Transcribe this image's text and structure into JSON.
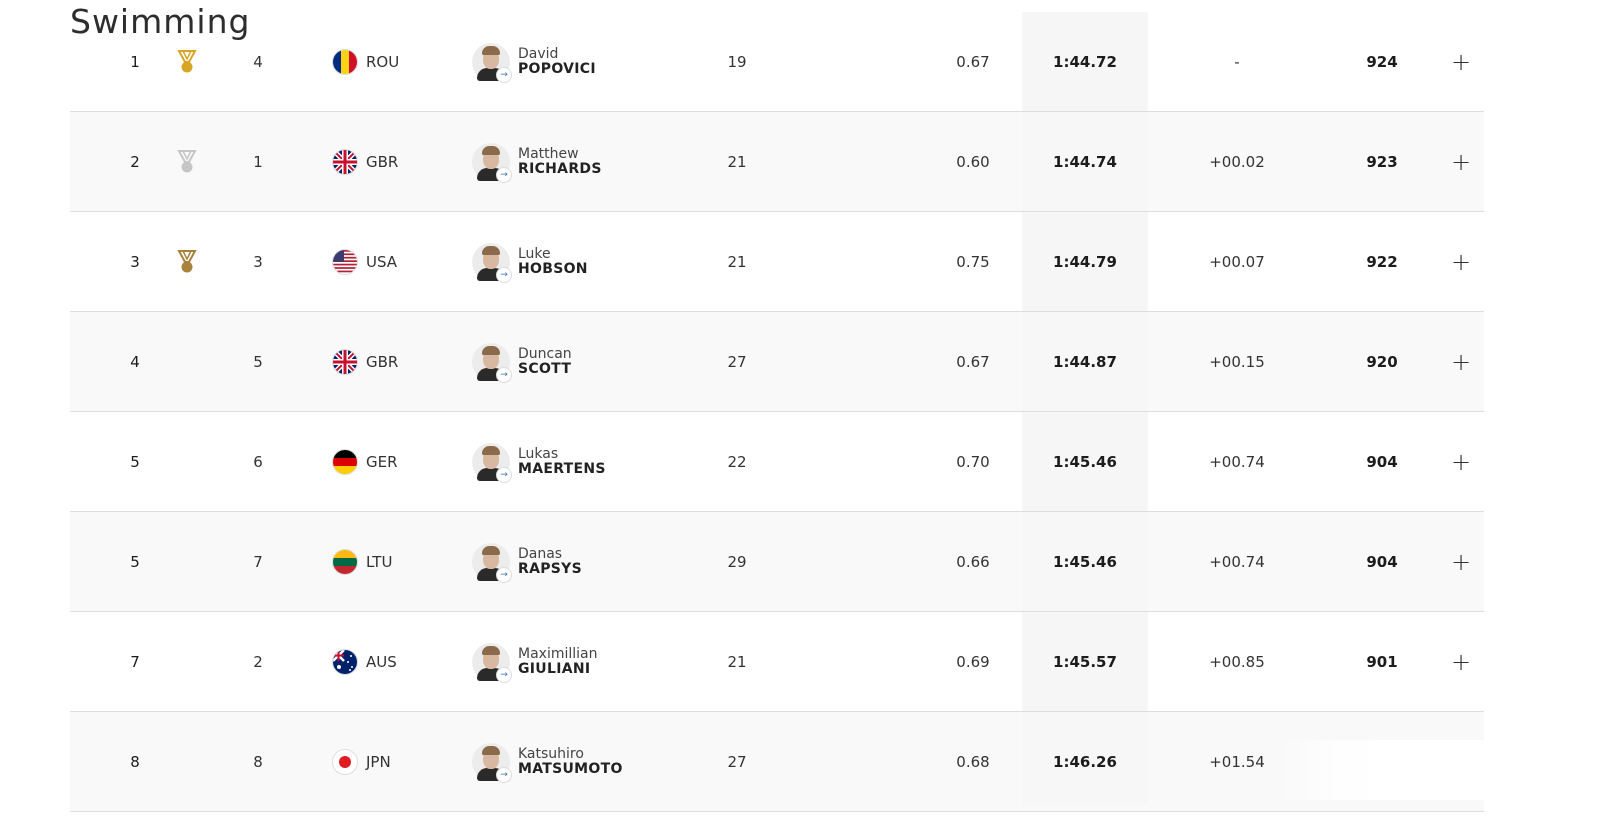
{
  "page_title": "Swimming",
  "colors": {
    "gold": "#d8a524",
    "silver": "#c6c6c6",
    "bronze": "#a8823c",
    "time_band": "#f6f6f6",
    "row_border": "#dedede"
  },
  "rows": [
    {
      "rank": "1",
      "medal": "gold",
      "lane": "4",
      "noc": "ROU",
      "first": "David",
      "last": "POPOVICI",
      "age": "19",
      "reaction": "0.67",
      "time": "1:44.72",
      "behind": "-",
      "points": "924",
      "expand": "+",
      "flag": [
        "#002b7f",
        "#fcd116",
        "#ce1126"
      ],
      "flag_dir": "v"
    },
    {
      "rank": "2",
      "medal": "silver",
      "lane": "1",
      "noc": "GBR",
      "first": "Matthew",
      "last": "RICHARDS",
      "age": "21",
      "reaction": "0.60",
      "time": "1:44.74",
      "behind": "+00.02",
      "points": "923",
      "expand": "+",
      "flag": "uk"
    },
    {
      "rank": "3",
      "medal": "bronze",
      "lane": "3",
      "noc": "USA",
      "first": "Luke",
      "last": "HOBSON",
      "age": "21",
      "reaction": "0.75",
      "time": "1:44.79",
      "behind": "+00.07",
      "points": "922",
      "expand": "+",
      "flag": "usa"
    },
    {
      "rank": "4",
      "medal": "",
      "lane": "5",
      "noc": "GBR",
      "first": "Duncan",
      "last": "SCOTT",
      "age": "27",
      "reaction": "0.67",
      "time": "1:44.87",
      "behind": "+00.15",
      "points": "920",
      "expand": "+",
      "flag": "uk"
    },
    {
      "rank": "5",
      "medal": "",
      "lane": "6",
      "noc": "GER",
      "first": "Lukas",
      "last": "MAERTENS",
      "age": "22",
      "reaction": "0.70",
      "time": "1:45.46",
      "behind": "+00.74",
      "points": "904",
      "expand": "+",
      "flag": [
        "#000000",
        "#dd0000",
        "#ffce00"
      ],
      "flag_dir": "h"
    },
    {
      "rank": "5",
      "medal": "",
      "lane": "7",
      "noc": "LTU",
      "first": "Danas",
      "last": "RAPSYS",
      "age": "29",
      "reaction": "0.66",
      "time": "1:45.46",
      "behind": "+00.74",
      "points": "904",
      "expand": "+",
      "flag": [
        "#fdb913",
        "#006a44",
        "#c1272d"
      ],
      "flag_dir": "h"
    },
    {
      "rank": "7",
      "medal": "",
      "lane": "2",
      "noc": "AUS",
      "first": "Maximillian",
      "last": "GIULIANI",
      "age": "21",
      "reaction": "0.69",
      "time": "1:45.57",
      "behind": "+00.85",
      "points": "901",
      "expand": "+",
      "flag": "aus"
    },
    {
      "rank": "8",
      "medal": "",
      "lane": "8",
      "noc": "JPN",
      "first": "Katsuhiro",
      "last": "MATSUMOTO",
      "age": "27",
      "reaction": "0.68",
      "time": "1:46.26",
      "behind": "+01.54",
      "points": "",
      "expand": "",
      "flag": "jpn"
    }
  ]
}
